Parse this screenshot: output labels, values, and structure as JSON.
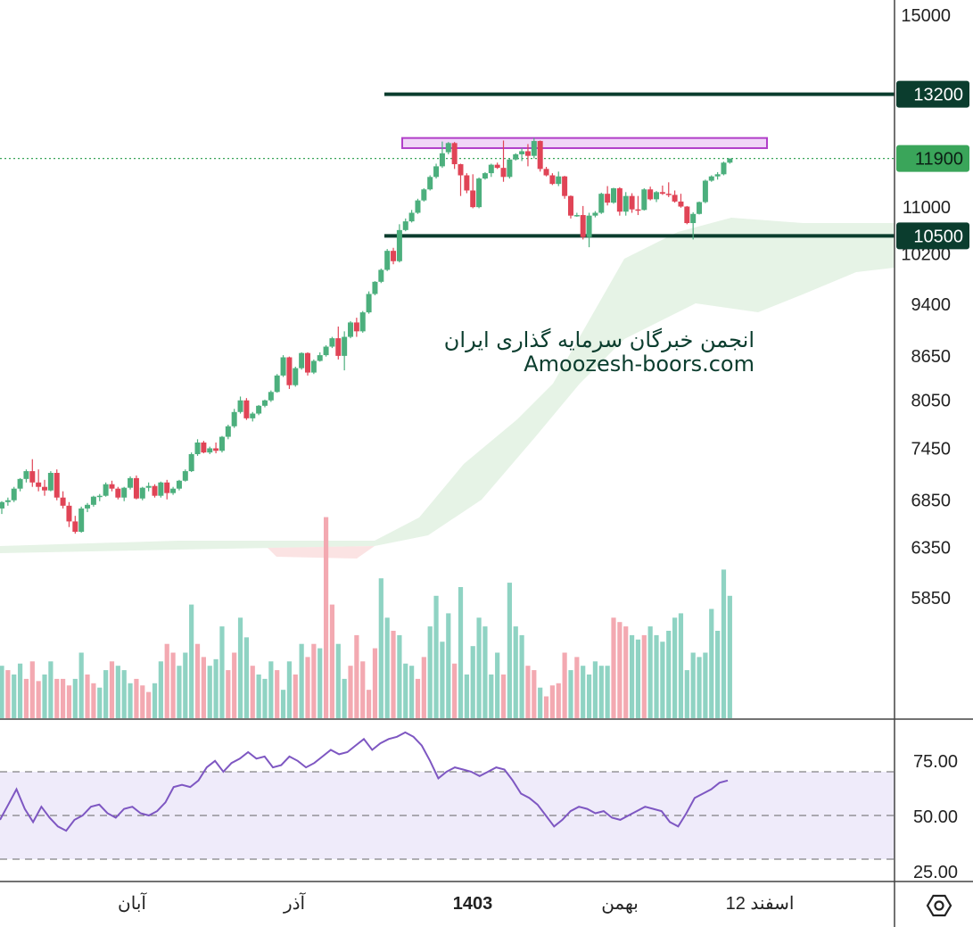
{
  "chart_data": [
    {
      "type": "candlestick",
      "title": "",
      "y_axis": {
        "ticks": [
          "15000",
          "11000",
          "10200",
          "9400",
          "8650",
          "8050",
          "7450",
          "6850",
          "6350",
          "5850"
        ],
        "range": [
          5300,
          15000
        ],
        "scale": "log"
      },
      "x_axis": {
        "ticks": [
          "آبان",
          "آذر",
          "1403",
          "بهمن",
          "12 اسفند"
        ]
      },
      "price_tags": [
        {
          "value": 13200,
          "label": "13200",
          "kind": "resistance"
        },
        {
          "value": 11900,
          "label": "11900",
          "kind": "last-price"
        },
        {
          "value": 10500,
          "label": "10500",
          "kind": "support"
        }
      ],
      "zone": {
        "from": 12100,
        "to": 12300,
        "label": ""
      },
      "candles": [
        [
          6760,
          6840,
          6700,
          6830
        ],
        [
          6830,
          6880,
          6790,
          6850
        ],
        [
          6850,
          7000,
          6830,
          6980
        ],
        [
          6980,
          7100,
          6950,
          7090
        ],
        [
          7090,
          7200,
          7050,
          7180
        ],
        [
          7180,
          7320,
          7000,
          7050
        ],
        [
          7050,
          7200,
          6950,
          7000
        ],
        [
          7000,
          7080,
          6900,
          6960
        ],
        [
          6960,
          7180,
          6950,
          7160
        ],
        [
          7160,
          7200,
          6850,
          6880
        ],
        [
          6880,
          6950,
          6760,
          6790
        ],
        [
          6790,
          6830,
          6560,
          6620
        ],
        [
          6620,
          6680,
          6490,
          6510
        ],
        [
          6510,
          6780,
          6500,
          6760
        ],
        [
          6760,
          6820,
          6720,
          6800
        ],
        [
          6800,
          6900,
          6780,
          6890
        ],
        [
          6890,
          6920,
          6840,
          6900
        ],
        [
          6900,
          7050,
          6890,
          7030
        ],
        [
          7030,
          7070,
          6950,
          6980
        ],
        [
          6980,
          7000,
          6860,
          6880
        ],
        [
          6880,
          7000,
          6840,
          6990
        ],
        [
          6990,
          7120,
          6970,
          7100
        ],
        [
          7100,
          7130,
          6860,
          6870
        ],
        [
          6870,
          7000,
          6850,
          6990
        ],
        [
          6990,
          7050,
          6950,
          7010
        ],
        [
          7010,
          7030,
          6880,
          6900
        ],
        [
          6900,
          7060,
          6880,
          7050
        ],
        [
          7050,
          7080,
          6860,
          6930
        ],
        [
          6930,
          7000,
          6910,
          6980
        ],
        [
          6980,
          7080,
          6960,
          7070
        ],
        [
          7070,
          7200,
          7060,
          7180
        ],
        [
          7180,
          7400,
          7170,
          7380
        ],
        [
          7380,
          7560,
          7360,
          7520
        ],
        [
          7520,
          7540,
          7390,
          7400
        ],
        [
          7400,
          7470,
          7380,
          7450
        ],
        [
          7450,
          7520,
          7390,
          7420
        ],
        [
          7420,
          7600,
          7400,
          7590
        ],
        [
          7590,
          7740,
          7560,
          7720
        ],
        [
          7720,
          7940,
          7700,
          7900
        ],
        [
          7900,
          8100,
          7880,
          8050
        ],
        [
          8050,
          8080,
          7800,
          7820
        ],
        [
          7820,
          7900,
          7780,
          7880
        ],
        [
          7880,
          7990,
          7860,
          7980
        ],
        [
          7980,
          8060,
          7960,
          8050
        ],
        [
          8050,
          8180,
          8030,
          8160
        ],
        [
          8160,
          8400,
          8150,
          8380
        ],
        [
          8380,
          8660,
          8360,
          8630
        ],
        [
          8630,
          8640,
          8200,
          8250
        ],
        [
          8250,
          8500,
          8230,
          8480
        ],
        [
          8480,
          8700,
          8460,
          8690
        ],
        [
          8690,
          8700,
          8380,
          8420
        ],
        [
          8420,
          8600,
          8400,
          8580
        ],
        [
          8580,
          8700,
          8570,
          8660
        ],
        [
          8660,
          8800,
          8640,
          8780
        ],
        [
          8780,
          8920,
          8760,
          8900
        ],
        [
          8900,
          9070,
          8600,
          8650
        ],
        [
          8650,
          9000,
          8450,
          8920
        ],
        [
          8920,
          9150,
          8900,
          9130
        ],
        [
          9130,
          9200,
          8920,
          9000
        ],
        [
          9000,
          9300,
          8980,
          9280
        ],
        [
          9280,
          9600,
          9260,
          9560
        ],
        [
          9560,
          9760,
          9540,
          9750
        ],
        [
          9750,
          9960,
          9730,
          9940
        ],
        [
          9940,
          10280,
          9920,
          10250
        ],
        [
          10250,
          10300,
          10030,
          10080
        ],
        [
          10080,
          10700,
          10060,
          10600
        ],
        [
          10600,
          10800,
          10580,
          10750
        ],
        [
          10750,
          10950,
          10730,
          10900
        ],
        [
          10900,
          11150,
          10880,
          11120
        ],
        [
          11120,
          11340,
          11100,
          11320
        ],
        [
          11320,
          11580,
          11300,
          11550
        ],
        [
          11550,
          11800,
          11520,
          11750
        ],
        [
          11750,
          12230,
          11720,
          12000
        ],
        [
          12020,
          12220,
          11980,
          12200
        ],
        [
          12200,
          12220,
          11700,
          11790
        ],
        [
          11790,
          11800,
          11200,
          11580
        ],
        [
          11580,
          11620,
          11250,
          11300
        ],
        [
          11300,
          11600,
          10980,
          11000
        ],
        [
          11000,
          11540,
          10980,
          11520
        ],
        [
          11520,
          11640,
          11500,
          11620
        ],
        [
          11620,
          11800,
          11550,
          11780
        ],
        [
          11780,
          11820,
          11700,
          11720
        ],
        [
          11720,
          12250,
          11460,
          11550
        ],
        [
          11550,
          11900,
          11520,
          11880
        ],
        [
          11880,
          12000,
          11860,
          11980
        ],
        [
          11980,
          12100,
          11850,
          12040
        ],
        [
          12040,
          12180,
          11750,
          11950
        ],
        [
          11950,
          12300,
          11900,
          12240
        ],
        [
          12240,
          12250,
          11650,
          11700
        ],
        [
          11700,
          11740,
          11560,
          11580
        ],
        [
          11580,
          11620,
          11400,
          11420
        ],
        [
          11420,
          11650,
          11380,
          11560
        ],
        [
          11560,
          11570,
          11150,
          11200
        ],
        [
          11200,
          11210,
          10800,
          10850
        ],
        [
          10850,
          10900,
          10830,
          10860
        ],
        [
          10860,
          11020,
          10440,
          10480
        ],
        [
          10480,
          10900,
          10310,
          10850
        ],
        [
          10850,
          10930,
          10820,
          10900
        ],
        [
          10900,
          11260,
          10880,
          11240
        ],
        [
          11240,
          11380,
          11030,
          11080
        ],
        [
          11080,
          11350,
          11060,
          11340
        ],
        [
          11340,
          11360,
          10850,
          10920
        ],
        [
          10920,
          11270,
          10850,
          11200
        ],
        [
          11200,
          11250,
          10900,
          10960
        ],
        [
          10960,
          11200,
          10860,
          10950
        ],
        [
          10950,
          11340,
          10940,
          11320
        ],
        [
          11320,
          11370,
          11120,
          11140
        ],
        [
          11140,
          11290,
          11090,
          11270
        ],
        [
          11270,
          11390,
          11220,
          11240
        ],
        [
          11240,
          11450,
          11180,
          11220
        ],
        [
          11220,
          11300,
          11080,
          11100
        ],
        [
          11100,
          11240,
          10990,
          11010
        ],
        [
          11010,
          11020,
          10700,
          10720
        ],
        [
          10720,
          10910,
          10440,
          10880
        ],
        [
          10880,
          11100,
          10870,
          11090
        ],
        [
          11090,
          11500,
          11070,
          11480
        ],
        [
          11480,
          11580,
          11460,
          11560
        ],
        [
          11560,
          11640,
          11500,
          11600
        ],
        [
          11600,
          11840,
          11580,
          11820
        ],
        [
          11820,
          11900,
          11800,
          11900
        ]
      ],
      "volume": [
        [
          24,
          1
        ],
        [
          22,
          0
        ],
        [
          20,
          1
        ],
        [
          25,
          1
        ],
        [
          18,
          0
        ],
        [
          26,
          0
        ],
        [
          17,
          0
        ],
        [
          20,
          1
        ],
        [
          26,
          1
        ],
        [
          18,
          0
        ],
        [
          18,
          0
        ],
        [
          15,
          0
        ],
        [
          18,
          1
        ],
        [
          30,
          1
        ],
        [
          20,
          0
        ],
        [
          16,
          0
        ],
        [
          14,
          1
        ],
        [
          22,
          1
        ],
        [
          26,
          0
        ],
        [
          24,
          1
        ],
        [
          22,
          1
        ],
        [
          16,
          1
        ],
        [
          18,
          0
        ],
        [
          15,
          0
        ],
        [
          12,
          0
        ],
        [
          16,
          1
        ],
        [
          26,
          1
        ],
        [
          34,
          0
        ],
        [
          30,
          0
        ],
        [
          24,
          1
        ],
        [
          30,
          1
        ],
        [
          52,
          1
        ],
        [
          34,
          0
        ],
        [
          28,
          0
        ],
        [
          24,
          1
        ],
        [
          27,
          1
        ],
        [
          42,
          1
        ],
        [
          22,
          0
        ],
        [
          30,
          0
        ],
        [
          46,
          1
        ],
        [
          37,
          1
        ],
        [
          24,
          0
        ],
        [
          20,
          1
        ],
        [
          18,
          1
        ],
        [
          26,
          1
        ],
        [
          22,
          0
        ],
        [
          13,
          1
        ],
        [
          26,
          1
        ],
        [
          20,
          0
        ],
        [
          34,
          1
        ],
        [
          28,
          0
        ],
        [
          34,
          0
        ],
        [
          32,
          1
        ],
        [
          92,
          0
        ],
        [
          52,
          0
        ],
        [
          34,
          1
        ],
        [
          18,
          1
        ],
        [
          24,
          0
        ],
        [
          38,
          0
        ],
        [
          26,
          0
        ],
        [
          13,
          0
        ],
        [
          32,
          0
        ],
        [
          64,
          1
        ],
        [
          46,
          1
        ],
        [
          40,
          0
        ],
        [
          38,
          1
        ],
        [
          25,
          1
        ],
        [
          24,
          1
        ],
        [
          18,
          0
        ],
        [
          28,
          0
        ],
        [
          42,
          1
        ],
        [
          56,
          1
        ],
        [
          35,
          1
        ],
        [
          48,
          1
        ],
        [
          25,
          0
        ],
        [
          60,
          1
        ],
        [
          20,
          1
        ],
        [
          33,
          1
        ],
        [
          46,
          1
        ],
        [
          42,
          1
        ],
        [
          20,
          1
        ],
        [
          30,
          1
        ],
        [
          20,
          0
        ],
        [
          62,
          1
        ],
        [
          42,
          1
        ],
        [
          38,
          1
        ],
        [
          24,
          0
        ],
        [
          22,
          0
        ],
        [
          14,
          1
        ],
        [
          10,
          0
        ],
        [
          15,
          0
        ],
        [
          16,
          0
        ],
        [
          30,
          0
        ],
        [
          22,
          1
        ],
        [
          28,
          0
        ],
        [
          24,
          1
        ],
        [
          20,
          1
        ],
        [
          26,
          1
        ],
        [
          24,
          1
        ],
        [
          24,
          1
        ],
        [
          46,
          0
        ],
        [
          44,
          0
        ],
        [
          42,
          0
        ],
        [
          38,
          1
        ],
        [
          36,
          1
        ],
        [
          38,
          0
        ],
        [
          42,
          1
        ],
        [
          38,
          1
        ],
        [
          35,
          1
        ],
        [
          40,
          1
        ],
        [
          46,
          1
        ],
        [
          48,
          1
        ],
        [
          22,
          1
        ],
        [
          30,
          1
        ],
        [
          28,
          1
        ],
        [
          30,
          1
        ],
        [
          50,
          1
        ],
        [
          40,
          1
        ],
        [
          68,
          1
        ],
        [
          56,
          1
        ]
      ]
    },
    {
      "type": "line",
      "title": "",
      "y_axis": {
        "ticks": [
          "75.00",
          "50.00",
          "25.00"
        ],
        "range": [
          10,
          90
        ]
      },
      "bands": {
        "upper": 70,
        "middle": 50,
        "lower": 30
      },
      "series": [
        {
          "name": "",
          "values": [
            48,
            55,
            62,
            53,
            47,
            54,
            49,
            45,
            43,
            48,
            50,
            54,
            55,
            51,
            49,
            53,
            54,
            51,
            50,
            52,
            56,
            63,
            64,
            63,
            66,
            72,
            75,
            70,
            74,
            76,
            79,
            76,
            77,
            72,
            73,
            77,
            75,
            72,
            74,
            77,
            80,
            78,
            79,
            82,
            85,
            80,
            83,
            85,
            86,
            88,
            86,
            82,
            75,
            67,
            70,
            72,
            71,
            70,
            68,
            70,
            72,
            71,
            66,
            60,
            58,
            55,
            50,
            45,
            48,
            52,
            54,
            53,
            51,
            52,
            49,
            48,
            50,
            52,
            54,
            53,
            52,
            47,
            45,
            51,
            58,
            60,
            62,
            65,
            66
          ]
        }
      ]
    }
  ],
  "watermark": {
    "line1": "انجمن خبرگان سرمایه گذاری ایران",
    "line2": "Amoozesh-boors.com"
  },
  "colors": {
    "up": "#4caf7d",
    "down": "#e04456",
    "volume_up": "#8fd3c3",
    "volume_down": "#f3a9b1",
    "cloud": "#e6f3e6",
    "cloud_bear": "#fbe3e3",
    "line_dark": "#0b3d2e",
    "tag_last": "#3aa55a",
    "zone_fill": "#f0d6f7",
    "zone_stroke": "#b13fc9",
    "rsi": "#7e57c2",
    "rsi_band": "#efebfa"
  },
  "settings_icon": "hexagon-settings-icon"
}
